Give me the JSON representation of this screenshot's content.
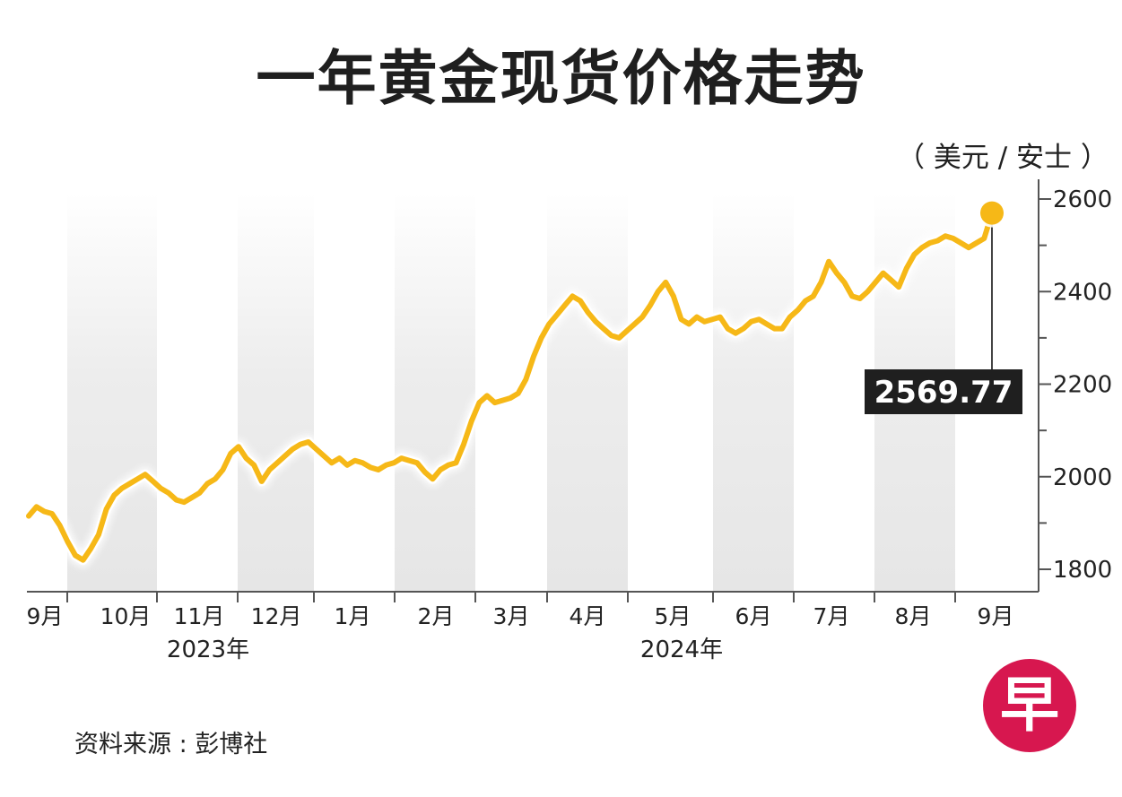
{
  "title": "一年黄金现货价格走势",
  "unit_label": "（ 美元 / 安士 ）",
  "source": "资料来源 : 彭博社",
  "logo_text": "早",
  "colors": {
    "line": "#f6b817",
    "band": "#ececec",
    "label_bg": "#1f1f1f",
    "logo": "#d7174f"
  },
  "chart_data": {
    "type": "line",
    "title": "一年黄金现货价格走势",
    "ylabel": "（ 美元 / 安士 ）",
    "xlabel": "",
    "ylim": [
      1750,
      2625
    ],
    "yticks": [
      1800,
      2000,
      2200,
      2400,
      2600
    ],
    "grid": false,
    "legend": "none",
    "months": [
      "9月",
      "10月",
      "11月",
      "12月",
      "1月",
      "2月",
      "3月",
      "4月",
      "5月",
      "6月",
      "7月",
      "8月",
      "9月"
    ],
    "years": [
      {
        "label": "2023年",
        "months_index": 2
      },
      {
        "label": "2024年",
        "months_index": 8
      }
    ],
    "current_value": "2569.77",
    "series": [
      {
        "values": [
          1915,
          1935,
          1925,
          1920,
          1895,
          1860,
          1830,
          1820,
          1845,
          1875,
          1930,
          1960,
          1975,
          1985,
          1995,
          2005,
          1990,
          1975,
          1965,
          1950,
          1945,
          1955,
          1965,
          1985,
          1995,
          2015,
          2050,
          2065,
          2040,
          2025,
          1990,
          2015,
          2030,
          2045,
          2060,
          2070,
          2075,
          2060,
          2045,
          2030,
          2040,
          2025,
          2035,
          2030,
          2020,
          2015,
          2025,
          2030,
          2040,
          2035,
          2030,
          2010,
          1995,
          2015,
          2025,
          2030,
          2070,
          2120,
          2160,
          2175,
          2160,
          2165,
          2170,
          2180,
          2210,
          2260,
          2300,
          2330,
          2350,
          2370,
          2390,
          2380,
          2355,
          2335,
          2320,
          2305,
          2300,
          2315,
          2330,
          2345,
          2370,
          2400,
          2420,
          2390,
          2340,
          2330,
          2345,
          2335,
          2340,
          2345,
          2320,
          2310,
          2320,
          2335,
          2340,
          2330,
          2320,
          2320,
          2345,
          2360,
          2380,
          2390,
          2420,
          2465,
          2440,
          2420,
          2390,
          2385,
          2400,
          2420,
          2440,
          2425,
          2410,
          2450,
          2480,
          2495,
          2505,
          2510,
          2520,
          2515,
          2505,
          2495,
          2505,
          2515,
          2569.77
        ]
      }
    ]
  }
}
